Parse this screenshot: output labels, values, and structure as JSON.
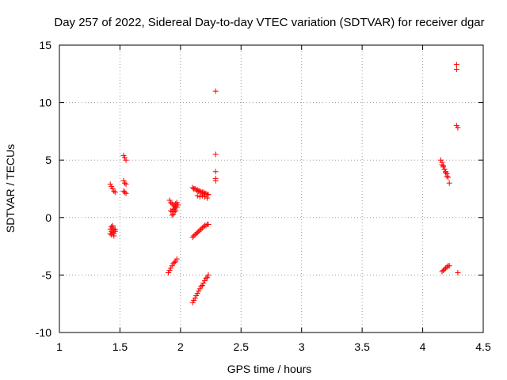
{
  "chart_data": {
    "type": "scatter",
    "title": "Day 257 of 2022, Sidereal Day-to-day VTEC variation (SDTVAR) for receiver dgar",
    "xlabel": "GPS time / hours",
    "ylabel": "SDTVAR / TECUs",
    "xlim": [
      1,
      4.5
    ],
    "ylim": [
      -10,
      15
    ],
    "xticks": [
      1,
      1.5,
      2,
      2.5,
      3,
      3.5,
      4,
      4.5
    ],
    "yticks": [
      -10,
      -5,
      0,
      5,
      10,
      15
    ],
    "xtick_labels": [
      "1",
      "1.5",
      "2",
      "2.5",
      "3",
      "3.5",
      "4",
      "4.5"
    ],
    "ytick_labels": [
      "-10",
      "-5",
      "0",
      "5",
      "10",
      "15"
    ],
    "grid": true,
    "marker": "+",
    "color": "#ff0000",
    "series": [
      {
        "x": [
          1.42,
          1.43,
          1.44,
          1.45,
          1.46,
          1.42,
          1.43,
          1.44,
          1.45,
          1.46,
          1.42,
          1.43,
          1.44,
          1.45,
          1.46,
          1.43,
          1.44,
          1.45,
          1.53,
          1.54,
          1.55,
          1.53,
          1.54,
          1.55,
          1.53,
          1.54,
          1.55,
          1.9,
          1.91,
          1.92,
          1.93,
          1.94,
          1.95,
          1.96,
          1.97,
          1.91,
          1.92,
          1.93,
          1.94,
          1.95,
          1.96,
          1.97,
          1.92,
          1.93,
          1.94,
          1.95,
          1.96,
          1.93,
          1.94,
          1.95,
          1.96,
          1.97,
          1.98,
          2.1,
          2.11,
          2.12,
          2.13,
          2.14,
          2.15,
          2.16,
          2.17,
          2.18,
          2.19,
          2.2,
          2.21,
          2.22,
          2.23,
          2.11,
          2.13,
          2.15,
          2.17,
          2.19,
          2.21,
          2.23,
          2.14,
          2.16,
          2.18,
          2.2,
          2.22,
          2.1,
          2.11,
          2.12,
          2.13,
          2.14,
          2.15,
          2.16,
          2.17,
          2.18,
          2.19,
          2.2,
          2.21,
          2.22,
          2.23,
          2.1,
          2.11,
          2.12,
          2.13,
          2.14,
          2.15,
          2.16,
          2.17,
          2.18,
          2.19,
          2.2,
          2.21,
          2.22,
          2.23,
          2.29,
          2.29,
          2.29,
          2.29,
          2.29,
          4.15,
          4.16,
          4.17,
          4.18,
          4.19,
          4.2,
          4.21,
          4.22,
          4.16,
          4.17,
          4.18,
          4.19,
          4.2,
          4.16,
          4.17,
          4.18,
          4.19,
          4.2,
          4.21,
          4.22,
          4.28,
          4.28,
          4.28,
          4.29,
          4.29
        ],
        "y": [
          2.9,
          2.7,
          2.5,
          2.3,
          2.2,
          -1.0,
          -1.2,
          -0.9,
          -1.1,
          -1.0,
          -1.4,
          -1.5,
          -1.3,
          -1.6,
          -1.2,
          -0.8,
          -0.7,
          -1.4,
          5.4,
          5.2,
          5.0,
          3.2,
          3.0,
          2.9,
          2.3,
          2.2,
          2.1,
          -4.8,
          -4.6,
          -4.4,
          -4.2,
          -4.0,
          -3.9,
          -3.8,
          -3.6,
          1.5,
          1.3,
          1.2,
          1.1,
          1.0,
          1.2,
          1.3,
          0.6,
          0.5,
          0.7,
          0.8,
          0.9,
          0.2,
          0.3,
          0.5,
          0.6,
          0.9,
          1.1,
          -1.7,
          -1.6,
          -1.5,
          -1.4,
          -1.3,
          -1.2,
          -1.1,
          -1.0,
          -0.9,
          -0.8,
          -0.7,
          -0.7,
          -0.6,
          -0.6,
          2.5,
          2.4,
          2.3,
          2.2,
          2.1,
          2.0,
          2.0,
          1.9,
          1.8,
          1.9,
          1.8,
          1.7,
          -7.4,
          -7.2,
          -7.0,
          -6.8,
          -6.6,
          -6.4,
          -6.2,
          -6.0,
          -5.9,
          -5.7,
          -5.5,
          -5.3,
          -5.2,
          -5.0,
          2.6,
          2.5,
          2.5,
          2.4,
          2.4,
          2.3,
          2.3,
          2.2,
          2.2,
          2.2,
          2.1,
          2.1,
          2.0,
          2.0,
          11.0,
          5.5,
          4.0,
          3.4,
          3.2,
          5.0,
          4.6,
          4.4,
          4.2,
          4.0,
          3.8,
          3.5,
          3.0,
          4.8,
          4.5,
          4.2,
          3.9,
          3.6,
          -4.7,
          -4.6,
          -4.5,
          -4.4,
          -4.3,
          -4.2,
          -4.2,
          13.3,
          12.9,
          8.0,
          7.8,
          -4.8
        ]
      }
    ]
  }
}
